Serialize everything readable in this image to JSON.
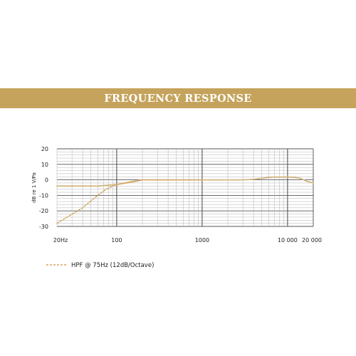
{
  "banner": {
    "title": "FREQUENCY RESPONSE"
  },
  "colors": {
    "banner": "#c5a35c",
    "response": "#d2b57e",
    "hpf": "#d4a460",
    "grid_major": "#555555",
    "grid_minor": "#aaaaaa"
  },
  "chart_data": {
    "type": "line",
    "title": "FREQUENCY RESPONSE",
    "xlabel": "",
    "ylabel": "dB re 1 V/Pa",
    "xscale": "log",
    "xlim": [
      20,
      20000
    ],
    "ylim": [
      -30,
      20
    ],
    "grid": true,
    "x_ticks": [
      {
        "value": 20,
        "label": "20Hz"
      },
      {
        "value": 100,
        "label": "100"
      },
      {
        "value": 1000,
        "label": "1000"
      },
      {
        "value": 10000,
        "label": "10 000"
      },
      {
        "value": 20000,
        "label": "20 000"
      }
    ],
    "y_ticks": [
      {
        "value": 20,
        "label": "20"
      },
      {
        "value": 10,
        "label": "10"
      },
      {
        "value": 0,
        "label": "0"
      },
      {
        "value": -10,
        "label": "-10"
      },
      {
        "value": -20,
        "label": "-20"
      },
      {
        "value": -30,
        "label": "-30"
      }
    ],
    "legend_position": "bottom-left",
    "series": [
      {
        "style": "solid",
        "x": [
          20,
          60,
          100,
          150,
          200,
          300,
          1000,
          3000,
          4000,
          5000,
          6000,
          7000,
          10000,
          12000,
          14000,
          17000,
          20000
        ],
        "y": [
          -4,
          -4,
          -3,
          -1.5,
          0,
          0,
          0,
          0,
          0.3,
          1,
          1.5,
          1.8,
          1.8,
          1.6,
          1,
          -1,
          -2
        ]
      },
      {
        "name": "HPF @ 75Hz (12dB/Octave)",
        "style": "dashed",
        "x": [
          20,
          40,
          60,
          75,
          100,
          150,
          200,
          300,
          1000
        ],
        "y": [
          -28,
          -18,
          -10,
          -6,
          -3,
          -1,
          0,
          0,
          0
        ]
      }
    ]
  }
}
